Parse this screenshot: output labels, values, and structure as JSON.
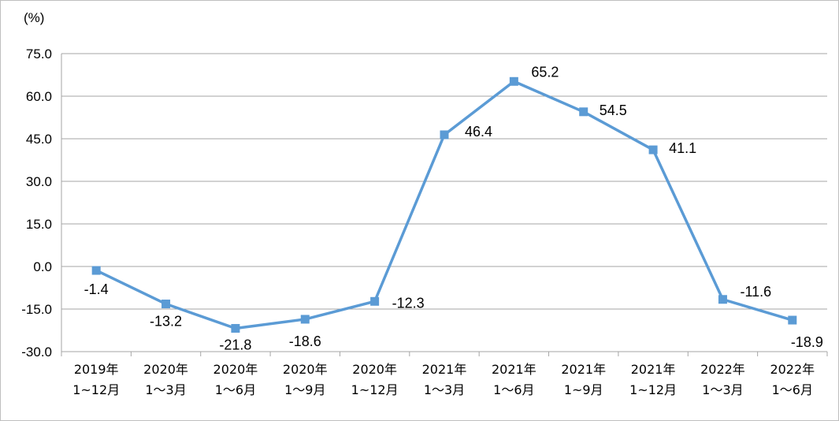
{
  "chart_data": {
    "type": "line",
    "unit_label": "(%)",
    "categories": [
      [
        "2019年",
        "1~12月"
      ],
      [
        "2020年",
        "1～3月"
      ],
      [
        "2020年",
        "1～6月"
      ],
      [
        "2020年",
        "1～9月"
      ],
      [
        "2020年",
        "1~12月"
      ],
      [
        "2021年",
        "1～3月"
      ],
      [
        "2021年",
        "1～6月"
      ],
      [
        "2021年",
        "1~9月"
      ],
      [
        "2021年",
        "1~12月"
      ],
      [
        "2022年",
        "1～3月"
      ],
      [
        "2022年",
        "1～6月"
      ]
    ],
    "series": [
      {
        "values": [
          -1.4,
          -13.2,
          -21.8,
          -18.6,
          -12.3,
          46.4,
          65.2,
          54.5,
          41.1,
          -11.6,
          -18.9
        ],
        "color": "#5b9bd5"
      }
    ],
    "data_labels": [
      "-1.4",
      "-13.2",
      "-21.8",
      "-18.6",
      "-12.3",
      "46.4",
      "65.2",
      "54.5",
      "41.1",
      "-11.6",
      "-18.9"
    ],
    "yticks": [
      "75.0",
      "60.0",
      "45.0",
      "30.0",
      "15.0",
      "0.0",
      "-15.0",
      "-30.0"
    ],
    "ylim": [
      -30,
      75
    ],
    "grid": true,
    "legend": "none"
  }
}
